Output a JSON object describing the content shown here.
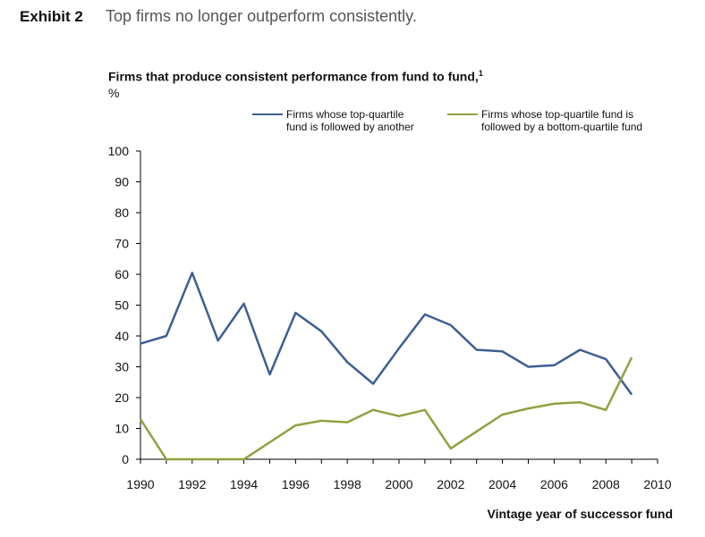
{
  "header": {
    "exhibit_label": "Exhibit 2",
    "exhibit_title": "Top firms no longer outperform consistently."
  },
  "chart_data": {
    "type": "line",
    "title": "Firms that produce consistent performance from fund to fund,",
    "title_footnote": "1",
    "ylabel": "%",
    "xlabel": "Vintage year of successor fund",
    "xlim": [
      1990,
      2010
    ],
    "ylim": [
      0,
      100
    ],
    "x_ticks": [
      1990,
      1992,
      1994,
      1996,
      1998,
      2000,
      2002,
      2004,
      2006,
      2008,
      2010
    ],
    "y_ticks": [
      0,
      10,
      20,
      30,
      40,
      50,
      60,
      70,
      80,
      90,
      100
    ],
    "grid": false,
    "legend_position": "top",
    "series": [
      {
        "name": "Firms whose top-quartile fund is followed by another",
        "legend_lines": [
          "Firms whose top-quartile",
          "fund is followed by another"
        ],
        "color": "#3d5f8f",
        "x": [
          1990,
          1991,
          1992,
          1993,
          1994,
          1995,
          1996,
          1997,
          1998,
          1999,
          2000,
          2001,
          2002,
          2003,
          2004,
          2005,
          2006,
          2007,
          2008,
          2009
        ],
        "y": [
          37.5,
          40,
          60.5,
          38.5,
          50.5,
          27.5,
          47.5,
          41.5,
          31.5,
          24.5,
          36,
          47,
          43.5,
          35.5,
          35,
          30,
          30.5,
          35.5,
          32.5,
          21
        ]
      },
      {
        "name": "Firms whose top-quartile fund is followed by a bottom-quartile fund",
        "legend_lines": [
          "Firms whose top-quartile fund is",
          "followed by a bottom-quartile fund"
        ],
        "color": "#8fa23f",
        "x": [
          1990,
          1991,
          1992,
          1993,
          1994,
          1995,
          1996,
          1997,
          1998,
          1999,
          2000,
          2001,
          2002,
          2003,
          2004,
          2005,
          2006,
          2007,
          2008,
          2009
        ],
        "y": [
          13,
          0,
          0,
          0,
          0,
          5.5,
          11,
          12.5,
          12,
          16,
          14,
          16,
          3.5,
          9,
          14.5,
          16.5,
          18,
          18.5,
          16,
          33
        ]
      }
    ]
  }
}
